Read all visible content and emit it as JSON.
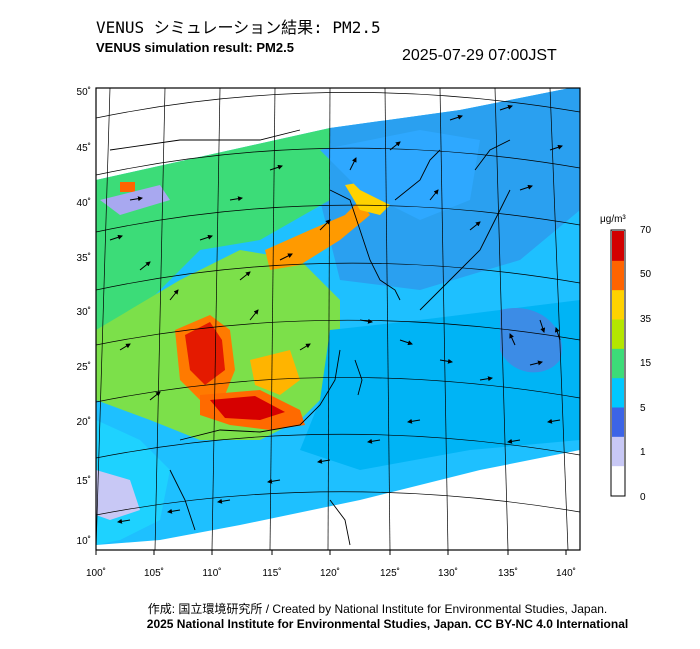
{
  "title_jp": "VENUS シミュレーション結果: PM2.5",
  "title_en": "VENUS simulation result: PM2.5",
  "datetime": "2025-07-29 07:00JST",
  "credit": "作成: 国立環境研究所 / Created by National Institute for Environmental Studies, Japan.",
  "copyright": "2025 National Institute for Environmental Studies, Japan. CC BY-NC 4.0 International",
  "colorbar": {
    "unit": "μg/m³",
    "ticks": [
      "0",
      "1",
      "5",
      "15",
      "35",
      "50",
      "70"
    ],
    "colors": [
      "#ffffff",
      "#c8c8f5",
      "#3c64e6",
      "#00c8ff",
      "#3cdc78",
      "#b4e600",
      "#ffd200",
      "#ff6400",
      "#d20000"
    ]
  },
  "map": {
    "lat_labels": [
      "50˚",
      "45˚",
      "40˚",
      "35˚",
      "30˚",
      "25˚",
      "20˚",
      "15˚",
      "10˚"
    ],
    "lon_labels": [
      "100˚",
      "105˚",
      "110˚",
      "115˚",
      "120˚",
      "125˚",
      "130˚",
      "135˚",
      "140˚"
    ]
  }
}
